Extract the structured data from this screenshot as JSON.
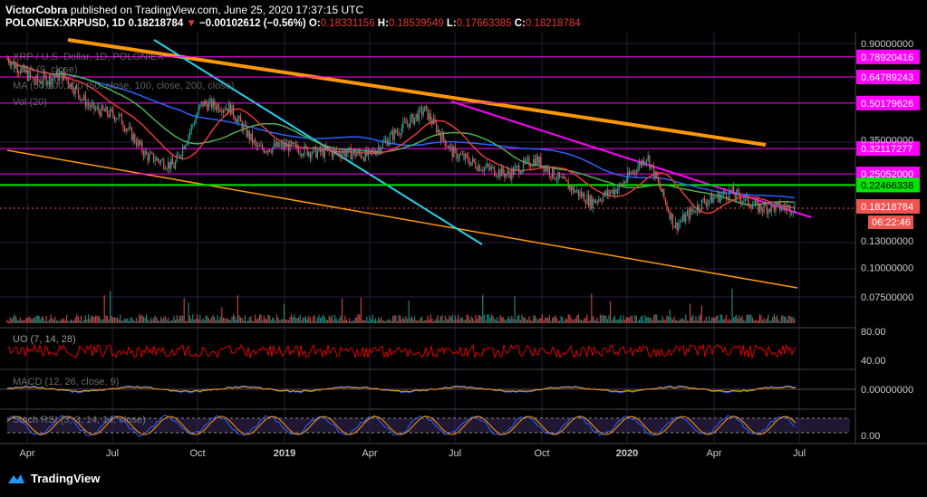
{
  "header": {
    "author": "VictorCobra",
    "published_text": "published on TradingView.com, June 25, 2020 17:37:15 UTC",
    "symbol": "POLONIEX:XRPUSD, 1D",
    "price": "0.18218784",
    "change_arrow": "▼",
    "change": "−0.00102612 (−0.56%)",
    "open_label": "O:",
    "open": "0.18331156",
    "high_label": "H:",
    "high": "0.18539549",
    "low_label": "L:",
    "low": "0.17663385",
    "close_label": "C:",
    "close": "0.18218784"
  },
  "indicators": {
    "title": "XRP / U.S. Dollar, 1D, POLONIEX",
    "ema": "EMA (9, close)",
    "ma": "MA (50,100,200 (50, close, 100, close, 200, close)",
    "vol": "Vol (20)",
    "uo": "UO (7, 14, 28)",
    "macd": "MACD (12, 26, close, 9)",
    "stoch": "Stoch RSI (3, 3, 14, 14, close)"
  },
  "colors": {
    "background": "#000000",
    "grid": "#2a1a40",
    "magenta": "#ff00ff",
    "orange": "#ff9800",
    "cyan": "#22d3ee",
    "green_level": "#00e600",
    "ma_red": "#e53935",
    "ma_green": "#4caf50",
    "ma_blue": "#2962ff",
    "candle_up": "#26a69a",
    "candle_down": "#ef5350",
    "uo": "#e00000"
  },
  "chart_data": {
    "type": "line",
    "scale": "log",
    "title": "XRP / U.S. Dollar, 1D, POLONIEX",
    "x_ticks": [
      "Apr",
      "Jul",
      "Oct",
      "2019",
      "Apr",
      "Jul",
      "Oct",
      "2020",
      "Apr",
      "Jul"
    ],
    "y_ticks": [
      "0.90000000",
      "0.35000000",
      "0.13000000",
      "0.10000000",
      "0.07500000"
    ],
    "price_levels": [
      {
        "value": "0.78920416",
        "color": "#ff00ff"
      },
      {
        "value": "0.64789243",
        "color": "#ff00ff"
      },
      {
        "value": "0.50179626",
        "color": "#ff00ff"
      },
      {
        "value": "0.32117277",
        "color": "#ff00ff"
      },
      {
        "value": "0.25052000",
        "color": "#ff00ff"
      },
      {
        "value": "0.22466338",
        "color": "#00e600"
      }
    ],
    "last_price": "0.18218784",
    "countdown": "06:22:46",
    "price_path": [
      {
        "t": "2018-03",
        "p": 0.78
      },
      {
        "t": "2018-04",
        "p": 0.62
      },
      {
        "t": "2018-05",
        "p": 0.66
      },
      {
        "t": "2018-06",
        "p": 0.48
      },
      {
        "t": "2018-07",
        "p": 0.44
      },
      {
        "t": "2018-08",
        "p": 0.3
      },
      {
        "t": "2018-09",
        "p": 0.27
      },
      {
        "t": "2018-10",
        "p": 0.5
      },
      {
        "t": "2018-11",
        "p": 0.48
      },
      {
        "t": "2018-12",
        "p": 0.32
      },
      {
        "t": "2019-01",
        "p": 0.33
      },
      {
        "t": "2019-02",
        "p": 0.31
      },
      {
        "t": "2019-03",
        "p": 0.31
      },
      {
        "t": "2019-04",
        "p": 0.3
      },
      {
        "t": "2019-05",
        "p": 0.38
      },
      {
        "t": "2019-06",
        "p": 0.47
      },
      {
        "t": "2019-07",
        "p": 0.31
      },
      {
        "t": "2019-08",
        "p": 0.27
      },
      {
        "t": "2019-09",
        "p": 0.25
      },
      {
        "t": "2019-10",
        "p": 0.29
      },
      {
        "t": "2019-11",
        "p": 0.23
      },
      {
        "t": "2019-12",
        "p": 0.19
      },
      {
        "t": "2020-01",
        "p": 0.22
      },
      {
        "t": "2020-02",
        "p": 0.3
      },
      {
        "t": "2020-03",
        "p": 0.15
      },
      {
        "t": "2020-04",
        "p": 0.19
      },
      {
        "t": "2020-05",
        "p": 0.21
      },
      {
        "t": "2020-06",
        "p": 0.18
      }
    ],
    "uo": {
      "ticks": [
        "80.00",
        "40.00"
      ]
    },
    "macd": {
      "ticks": [
        "0.00000000"
      ]
    },
    "stoch_rsi": {
      "ticks": [
        "0.00"
      ]
    }
  },
  "footer": {
    "brand": "TradingView"
  }
}
